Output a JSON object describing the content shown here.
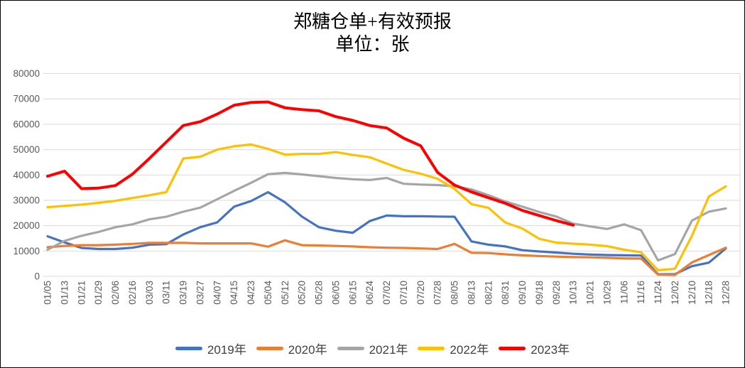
{
  "chart_data": {
    "type": "line",
    "title": "郑糖仓单+有效预报",
    "subtitle": "单位：张",
    "unit": "张",
    "xlabel": "",
    "ylabel": "",
    "ylim": [
      0,
      80000
    ],
    "yticks": [
      0,
      10000,
      20000,
      30000,
      40000,
      50000,
      60000,
      70000,
      80000
    ],
    "grid": true,
    "legend_position": "bottom",
    "categories": [
      "01/05",
      "01/13",
      "01/21",
      "01/29",
      "02/06",
      "02/16",
      "03/03",
      "03/11",
      "03/19",
      "03/27",
      "04/07",
      "04/15",
      "04/23",
      "05/04",
      "05/12",
      "05/20",
      "05/28",
      "06/05",
      "06/15",
      "06/24",
      "07/02",
      "07/10",
      "07/20",
      "07/28",
      "08/05",
      "08/13",
      "08/21",
      "08/31",
      "09/10",
      "09/18",
      "09/28",
      "10/13",
      "10/21",
      "10/29",
      "11/06",
      "11/16",
      "11/24",
      "12/02",
      "12/10",
      "12/18",
      "12/28"
    ],
    "series": [
      {
        "name": "2019年",
        "color": "#4472C4",
        "width": 3.2,
        "values": [
          15800,
          13400,
          11200,
          10800,
          10800,
          11300,
          12500,
          12700,
          16500,
          19400,
          21300,
          27500,
          29700,
          33200,
          29200,
          23600,
          19400,
          18000,
          17200,
          21800,
          24000,
          23700,
          23700,
          23600,
          23500,
          13800,
          12500,
          11800,
          10300,
          9800,
          9400,
          8900,
          8600,
          8400,
          8300,
          8200,
          800,
          900,
          4000,
          5400,
          11000
        ]
      },
      {
        "name": "2020年",
        "color": "#ED7D31",
        "width": 3.2,
        "values": [
          11500,
          12000,
          12300,
          12300,
          12500,
          12800,
          13200,
          13200,
          13200,
          13000,
          13000,
          13000,
          13000,
          11700,
          14200,
          12300,
          12200,
          12000,
          11800,
          11500,
          11300,
          11200,
          11000,
          10800,
          12800,
          9300,
          9200,
          8700,
          8300,
          8000,
          7800,
          7600,
          7500,
          7300,
          7100,
          7000,
          700,
          600,
          5500,
          8400,
          11300
        ]
      },
      {
        "name": "2021年",
        "color": "#A5A5A5",
        "width": 3.2,
        "values": [
          10500,
          14000,
          16000,
          17500,
          19400,
          20500,
          22500,
          23500,
          25500,
          27100,
          30400,
          33700,
          36900,
          40300,
          40800,
          40200,
          39500,
          38800,
          38300,
          38000,
          38800,
          36500,
          36200,
          36000,
          35500,
          34300,
          32000,
          29500,
          27500,
          25400,
          23600,
          20800,
          19700,
          18700,
          20500,
          18200,
          6300,
          8800,
          22000,
          25500,
          26800
        ]
      },
      {
        "name": "2022年",
        "color": "#FFC000",
        "width": 3.2,
        "values": [
          27300,
          27800,
          28300,
          29000,
          29800,
          30900,
          32000,
          33200,
          46500,
          47200,
          50000,
          51300,
          52000,
          50300,
          48000,
          48300,
          48300,
          49000,
          47900,
          47000,
          44500,
          42000,
          40500,
          38500,
          34500,
          28500,
          27000,
          21200,
          18900,
          14800,
          13300,
          12900,
          12500,
          11900,
          10500,
          9500,
          2400,
          3000,
          16000,
          31500,
          35500
        ]
      },
      {
        "name": "2023年",
        "color": "#FF0000",
        "width": 4,
        "values": [
          39500,
          41500,
          34600,
          34800,
          35800,
          40300,
          46500,
          53000,
          59500,
          61000,
          64000,
          67500,
          68600,
          68800,
          66500,
          65800,
          65300,
          63000,
          61500,
          59500,
          58500,
          54500,
          51500,
          41000,
          36000,
          33300,
          31000,
          28800,
          26000,
          24000,
          22000,
          20200,
          null,
          null,
          null,
          null,
          null,
          null,
          null,
          null,
          null
        ]
      }
    ]
  },
  "colors": {
    "grid": "#D9D9D9",
    "axis_text": "#595959",
    "title_text": "#000000",
    "legend_text": "#404040",
    "plot_right_border": "#D9D9D9",
    "background": "#FFFFFF",
    "frame_border": "#000000"
  }
}
